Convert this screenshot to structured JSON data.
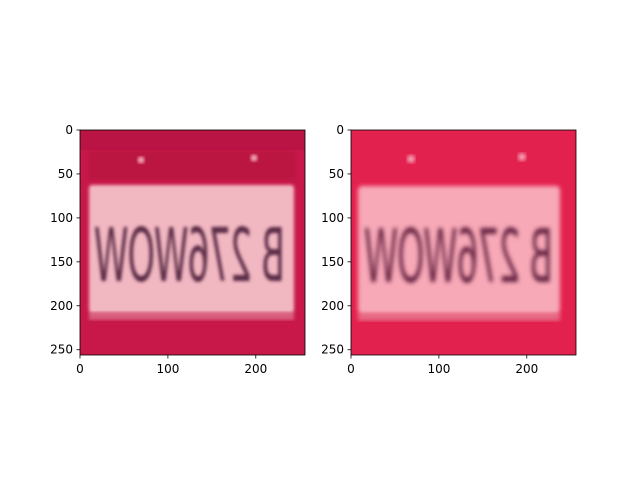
{
  "chart_data": [
    {
      "type": "image",
      "title": "",
      "xlabel": "",
      "ylabel": "",
      "xlim": [
        0,
        256
      ],
      "ylim": [
        256,
        0
      ],
      "xticks": [
        0,
        100,
        200
      ],
      "yticks": [
        0,
        50,
        100,
        150,
        200,
        250
      ],
      "image_content": {
        "plate_text": "B 276WOW",
        "mirrored": true,
        "style": "blurry license plate, red surround",
        "colors": {
          "surround": "#c8184a",
          "plate": "#f2b8c2",
          "text": "#5a2a45"
        }
      }
    },
    {
      "type": "image",
      "title": "",
      "xlabel": "",
      "ylabel": "",
      "xlim": [
        0,
        256
      ],
      "ylim": [
        256,
        0
      ],
      "xticks": [
        0,
        100,
        200
      ],
      "yticks": [
        0,
        50,
        100,
        150,
        200,
        250
      ],
      "image_content": {
        "plate_text": "B 276WOW",
        "mirrored": true,
        "style": "smoothed license plate, red surround",
        "colors": {
          "surround": "#e3214e",
          "plate": "#f7a9b7",
          "text": "#6b2545"
        }
      }
    }
  ]
}
